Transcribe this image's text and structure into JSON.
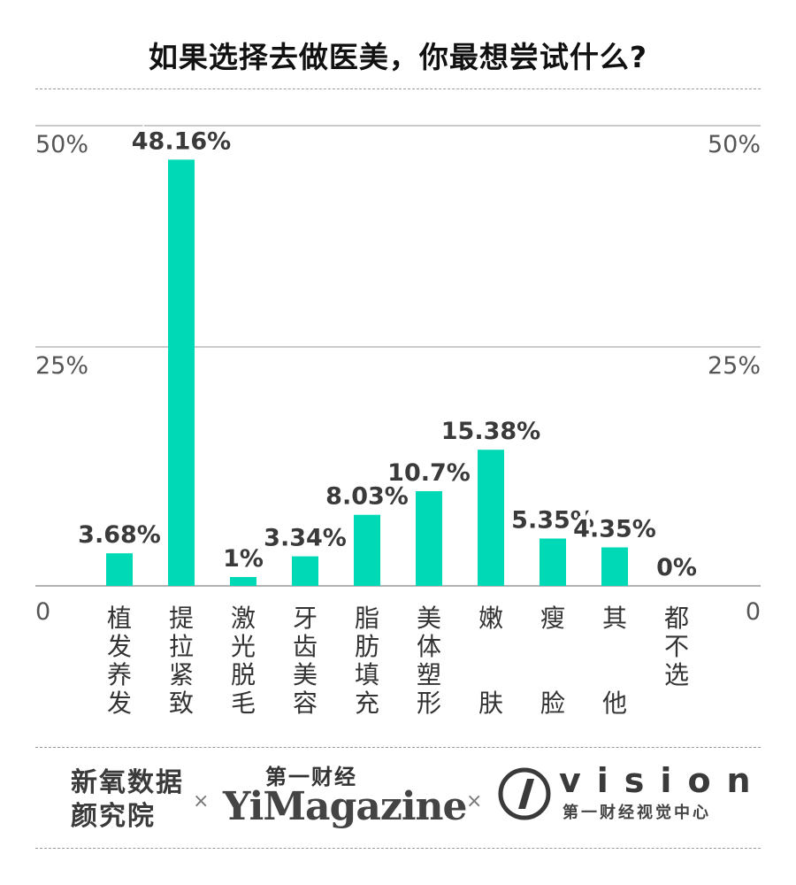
{
  "title": "如果选择去做医美，你最想尝试什么?",
  "chart_data": {
    "type": "bar",
    "title": "如果选择去做医美，你最想尝试什么?",
    "categories": [
      "植发养发",
      "提拉紧致",
      "激光脱毛",
      "牙齿美容",
      "脂肪填充",
      "美体塑形",
      "嫩肤",
      "瘦脸",
      "其他",
      "都不选"
    ],
    "values": [
      3.68,
      48.16,
      1,
      3.34,
      8.03,
      10.7,
      15.38,
      5.35,
      4.35,
      0
    ],
    "value_labels": [
      "3.68%",
      "48.16%",
      "1%",
      "3.34%",
      "8.03%",
      "10.7%",
      "15.38%",
      "5.35%",
      "4.35%",
      "0%"
    ],
    "yticks": [
      0,
      25,
      50
    ],
    "ytick_labels": [
      "0",
      "25%",
      "50%"
    ],
    "ylim": [
      0,
      50
    ],
    "bar_color": "#00d9b5",
    "xlabel": "",
    "ylabel": ""
  },
  "footer": {
    "brand1": "新氧数据颜究院",
    "separator": "×",
    "brand2_top": "第一财经",
    "brand2_main": "YiMagazine",
    "brand3_word": "vision",
    "brand3_sub": "第一财经视觉中心"
  }
}
